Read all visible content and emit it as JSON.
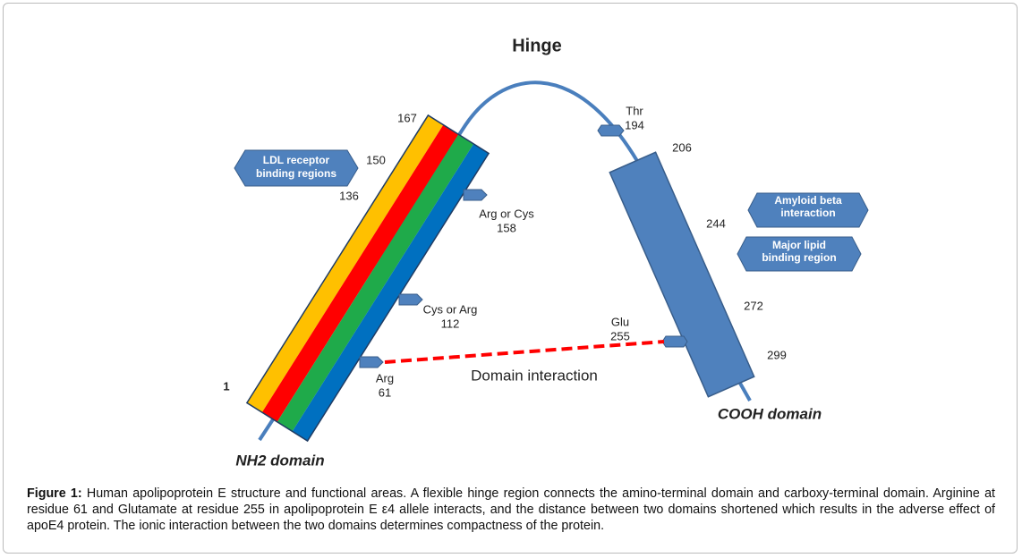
{
  "title": "Hinge",
  "nh2_domain": {
    "label": "NH2 domain",
    "residues": [
      "167",
      "150",
      "136",
      "1"
    ]
  },
  "cooh_domain": {
    "label": "COOH domain",
    "residues": [
      "206",
      "244",
      "272",
      "299"
    ]
  },
  "regions": [
    {
      "lines": [
        "LDL receptor",
        "binding regions"
      ]
    },
    {
      "lines": [
        "Amyloid beta",
        "interaction"
      ]
    },
    {
      "lines": [
        "Major lipid",
        "binding region"
      ]
    }
  ],
  "sites": [
    {
      "residue": "Arg or Cys",
      "number": "158"
    },
    {
      "residue": "Cys or Arg",
      "number": "112"
    },
    {
      "residue": "Arg",
      "number": "61"
    },
    {
      "residue": "Glu",
      "number": "255"
    },
    {
      "residue": "Thr",
      "number": "194"
    }
  ],
  "interaction": "Domain interaction",
  "caption": {
    "label": "Figure 1:",
    "text": "Human apolipoprotein E structure and functional areas. A flexible hinge region connects the amino-terminal domain and carboxy-terminal domain. Arginine at residue 61 and Glutamate at residue 255 in apolipoprotein E ε4 allele interacts, and the distance between two domains shortened which results in the adverse effect of apoE4 protein. The ionic interaction between the two domains determines compactness of the protein."
  }
}
